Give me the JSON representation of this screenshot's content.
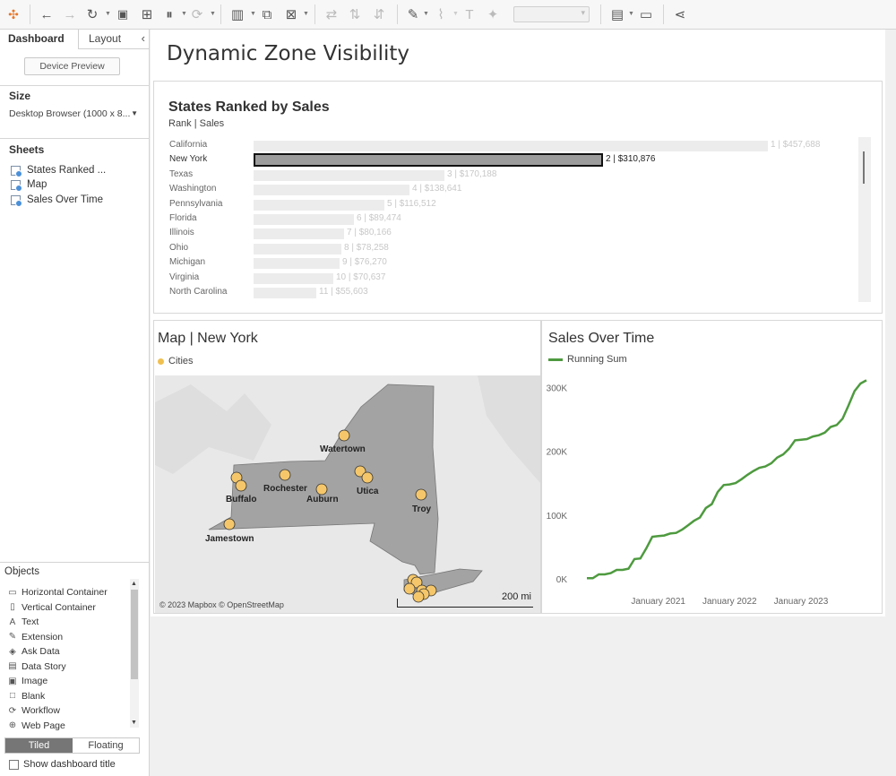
{
  "toolbar": {
    "icons": [
      "tableau-logo-icon",
      "undo-icon",
      "redo-icon",
      "replay-icon",
      "save-icon",
      "new-datasource-icon",
      "pause-icon",
      "refresh-icon",
      "new-worksheet-icon",
      "duplicate-icon",
      "clear-icon",
      "swap-icon",
      "sort-asc-icon",
      "sort-desc-icon",
      "highlight-icon",
      "attach-icon",
      "text-icon",
      "pin-icon",
      "show-me-icon",
      "presentation-icon",
      "share-icon"
    ]
  },
  "left_panel": {
    "tab_dashboard": "Dashboard",
    "tab_layout": "Layout",
    "device_preview": "Device Preview",
    "size_heading": "Size",
    "size_value": "Desktop Browser (1000 x 8...",
    "sheets_heading": "Sheets",
    "sheets": [
      "States Ranked ...",
      "Map",
      "Sales Over Time"
    ],
    "objects_heading": "Objects",
    "objects": [
      {
        "label": "Horizontal Container",
        "icon": "horizontal-container-icon",
        "glyph": "▭"
      },
      {
        "label": "Vertical Container",
        "icon": "vertical-container-icon",
        "glyph": "▯"
      },
      {
        "label": "Text",
        "icon": "text-icon",
        "glyph": "A"
      },
      {
        "label": "Extension",
        "icon": "extension-icon",
        "glyph": "✎"
      },
      {
        "label": "Ask Data",
        "icon": "ask-data-icon",
        "glyph": "◈"
      },
      {
        "label": "Data Story",
        "icon": "data-story-icon",
        "glyph": "▤"
      },
      {
        "label": "Image",
        "icon": "image-icon",
        "glyph": "▣"
      },
      {
        "label": "Blank",
        "icon": "blank-icon",
        "glyph": "□"
      },
      {
        "label": "Workflow",
        "icon": "workflow-icon",
        "glyph": "⟳"
      },
      {
        "label": "Web Page",
        "icon": "web-page-icon",
        "glyph": "⊕"
      }
    ],
    "tiled": "Tiled",
    "floating": "Floating",
    "show_title": "Show dashboard title"
  },
  "dashboard": {
    "title": "Dynamic Zone Visibility",
    "ranked": {
      "title": "States Ranked by Sales",
      "subtitle": "Rank | Sales",
      "selected_index": 1,
      "max_value": 457688,
      "rows": [
        {
          "state": "California",
          "value": 457688,
          "label": "1 | $457,688"
        },
        {
          "state": "New York",
          "value": 310876,
          "label": "2 | $310,876"
        },
        {
          "state": "Texas",
          "value": 170188,
          "label": "3 | $170,188"
        },
        {
          "state": "Washington",
          "value": 138641,
          "label": "4 | $138,641"
        },
        {
          "state": "Pennsylvania",
          "value": 116512,
          "label": "5 | $116,512"
        },
        {
          "state": "Florida",
          "value": 89474,
          "label": "6 | $89,474"
        },
        {
          "state": "Illinois",
          "value": 80166,
          "label": "7 | $80,166"
        },
        {
          "state": "Ohio",
          "value": 78258,
          "label": "8 | $78,258"
        },
        {
          "state": "Michigan",
          "value": 76270,
          "label": "9 | $76,270"
        },
        {
          "state": "Virginia",
          "value": 70637,
          "label": "10 | $70,637"
        },
        {
          "state": "North Carolina",
          "value": 55603,
          "label": "11 | $55,603"
        }
      ]
    },
    "map": {
      "title": "Map | New York",
      "legend": "Cities",
      "cities": [
        "Watertown",
        "Rochester",
        "Buffalo",
        "Auburn",
        "Utica",
        "Troy",
        "Jamestown"
      ],
      "attribution": "© 2023 Mapbox © OpenStreetMap",
      "scale": "200 mi",
      "state_color": "#a3a3a3",
      "point_color": "#f5c76a"
    },
    "sales": {
      "title": "Sales Over Time",
      "legend": "Running Sum",
      "line_color": "#4e9a3f"
    }
  },
  "chart_data": {
    "type": "line",
    "title": "Sales Over Time",
    "series": [
      {
        "name": "Running Sum",
        "x": [
          "2020-01",
          "2020-02",
          "2020-03",
          "2020-04",
          "2020-05",
          "2020-06",
          "2020-07",
          "2020-08",
          "2020-09",
          "2020-10",
          "2020-11",
          "2020-12",
          "2021-01",
          "2021-02",
          "2021-03",
          "2021-04",
          "2021-05",
          "2021-06",
          "2021-07",
          "2021-08",
          "2021-09",
          "2021-10",
          "2021-11",
          "2021-12",
          "2022-01",
          "2022-02",
          "2022-03",
          "2022-04",
          "2022-05",
          "2022-06",
          "2022-07",
          "2022-08",
          "2022-09",
          "2022-10",
          "2022-11",
          "2022-12",
          "2023-01",
          "2023-02",
          "2023-03",
          "2023-04",
          "2023-05",
          "2023-06",
          "2023-07",
          "2023-08",
          "2023-09",
          "2023-10",
          "2023-11",
          "2023-12"
        ],
        "values": [
          1000,
          1000,
          7000,
          7000,
          9000,
          14000,
          14000,
          16000,
          31000,
          32000,
          48000,
          66000,
          67000,
          68000,
          71000,
          72000,
          77000,
          84000,
          91000,
          96000,
          111000,
          117000,
          136000,
          147000,
          148000,
          150000,
          156000,
          163000,
          169000,
          174000,
          176000,
          181000,
          190000,
          195000,
          204000,
          217000,
          218000,
          219000,
          223000,
          225000,
          229000,
          238000,
          241000,
          251000,
          272000,
          294000,
          306000,
          311000
        ]
      }
    ],
    "xlabel": "",
    "ylabel": "",
    "ylim": [
      0,
      320000
    ],
    "yticks": [
      "0K",
      "100K",
      "200K",
      "300K"
    ],
    "xticks": [
      "January 2021",
      "January 2022",
      "January 2023"
    ]
  }
}
